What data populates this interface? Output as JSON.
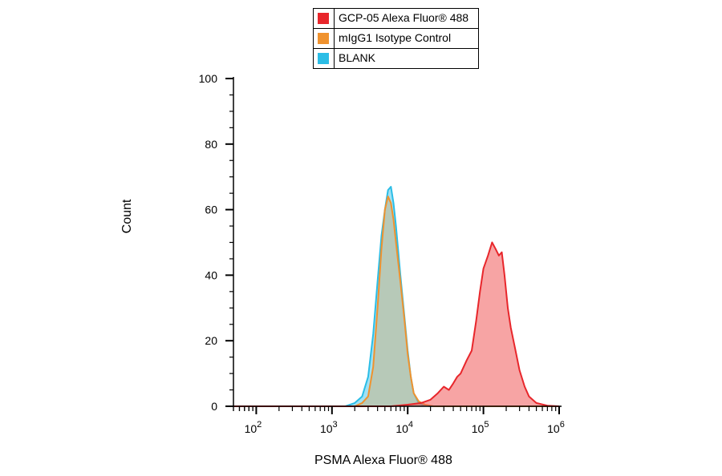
{
  "chart_data": {
    "type": "area",
    "xlabel": "PSMA Alexa Fluor® 488",
    "ylabel": "Count",
    "x_scale": "log",
    "xlim": [
      50,
      1000000
    ],
    "ylim": [
      0,
      100
    ],
    "yticks": [
      0,
      20,
      40,
      60,
      80,
      100
    ],
    "xticks": [
      {
        "value": 100,
        "base": "10",
        "exp": "2"
      },
      {
        "value": 1000,
        "base": "10",
        "exp": "3"
      },
      {
        "value": 10000,
        "base": "10",
        "exp": "4"
      },
      {
        "value": 100000,
        "base": "10",
        "exp": "5"
      },
      {
        "value": 1000000,
        "base": "10",
        "exp": "6"
      }
    ],
    "legend_position": "top-center",
    "series": [
      {
        "name": "BLANK",
        "color": "#2bbde6",
        "fill": "rgba(43,189,230,0.45)",
        "x": [
          50,
          1500,
          2000,
          2500,
          3000,
          3500,
          4000,
          4500,
          5000,
          5500,
          6000,
          6500,
          7000,
          8000,
          9000,
          10000,
          11000,
          12000,
          14000,
          16000,
          20000,
          1000000
        ],
        "y": [
          0,
          0,
          1,
          3,
          9,
          22,
          38,
          52,
          60,
          66,
          67,
          62,
          55,
          40,
          28,
          17,
          9,
          4,
          1,
          0.3,
          0,
          0
        ]
      },
      {
        "name": "mIgG1 Isotype Control",
        "color": "#f0922e",
        "fill": "rgba(240,146,46,0.30)",
        "x": [
          50,
          2000,
          2500,
          3000,
          3500,
          4000,
          4500,
          5000,
          5500,
          6000,
          6500,
          7000,
          8000,
          9000,
          10000,
          11000,
          12000,
          14000,
          17000,
          22000,
          1000000
        ],
        "y": [
          0,
          0,
          1,
          3,
          12,
          30,
          48,
          60,
          64,
          62,
          57,
          50,
          38,
          27,
          16,
          9,
          4,
          1.5,
          0.5,
          0,
          0
        ]
      },
      {
        "name": "GCP-05 Alexa Fluor® 488",
        "color": "#e8262b",
        "fill": "rgba(240,90,90,0.55)",
        "x": [
          50,
          6000,
          10000,
          15000,
          20000,
          25000,
          30000,
          35000,
          40000,
          45000,
          50000,
          60000,
          70000,
          80000,
          90000,
          100000,
          115000,
          130000,
          145000,
          160000,
          175000,
          190000,
          210000,
          230000,
          260000,
          300000,
          350000,
          400000,
          500000,
          700000,
          1000000
        ],
        "y": [
          0,
          0,
          0.5,
          1,
          2,
          4,
          6,
          5,
          7,
          9,
          10,
          14,
          17,
          26,
          35,
          42,
          46,
          50,
          48,
          46,
          47,
          40,
          30,
          24,
          18,
          11,
          6,
          3,
          1,
          0.2,
          0
        ]
      }
    ]
  }
}
